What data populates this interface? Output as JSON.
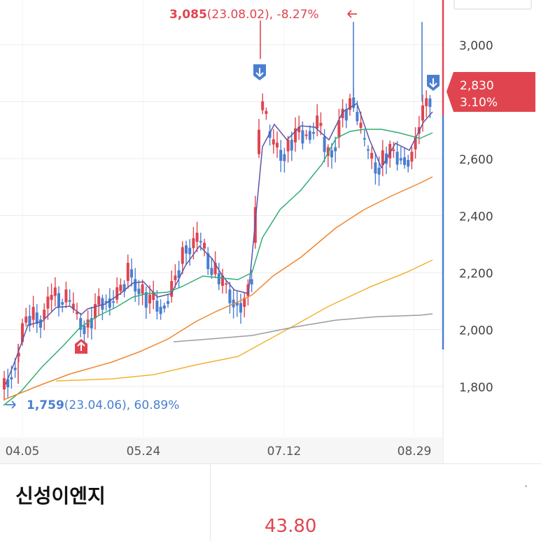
{
  "chart_data": {
    "type": "candlestick",
    "title": "",
    "y_ticks": [
      1800,
      2000,
      2200,
      2400,
      2600,
      2800,
      3000
    ],
    "y_tick_labels": [
      "1,800",
      "2,000",
      "2,200",
      "2,400",
      "2,600",
      "",
      "3,000"
    ],
    "ylim": [
      1660,
      3160
    ],
    "x_tick_labels": [
      "04.05",
      "05.24",
      "07.12",
      "08.29"
    ],
    "current_price": "2,830",
    "current_change": "3.10%",
    "high_price": "3,085",
    "high_detail": "(23.08.02), -8.27%",
    "low_price": "1,759",
    "low_detail": "(23.04.06), 60.89%",
    "colors": {
      "up": "#e0454f",
      "down": "#4a7fd0"
    },
    "moving_averages": [
      {
        "color": "#5a55a8",
        "points": [
          [
            8,
            550
          ],
          [
            22,
            515
          ],
          [
            40,
            465
          ],
          [
            60,
            460
          ],
          [
            80,
            440
          ],
          [
            100,
            438
          ],
          [
            116,
            450
          ],
          [
            125,
            442
          ],
          [
            150,
            435
          ],
          [
            172,
            420
          ],
          [
            190,
            405
          ],
          [
            205,
            403
          ],
          [
            225,
            425
          ],
          [
            245,
            420
          ],
          [
            265,
            380
          ],
          [
            285,
            352
          ],
          [
            303,
            370
          ],
          [
            318,
            395
          ],
          [
            335,
            415
          ],
          [
            355,
            420
          ],
          [
            375,
            210
          ],
          [
            392,
            178
          ],
          [
            410,
            200
          ],
          [
            430,
            180
          ],
          [
            450,
            182
          ],
          [
            470,
            200
          ],
          [
            490,
            160
          ],
          [
            510,
            148
          ],
          [
            528,
            200
          ],
          [
            545,
            240
          ],
          [
            565,
            205
          ],
          [
            585,
            215
          ],
          [
            605,
            175
          ],
          [
            618,
            160
          ]
        ]
      },
      {
        "color": "#2fae72",
        "points": [
          [
            5,
            580
          ],
          [
            30,
            560
          ],
          [
            60,
            525
          ],
          [
            90,
            495
          ],
          [
            115,
            468
          ],
          [
            140,
            452
          ],
          [
            165,
            440
          ],
          [
            190,
            425
          ],
          [
            210,
            420
          ],
          [
            240,
            418
          ],
          [
            260,
            410
          ],
          [
            290,
            395
          ],
          [
            320,
            398
          ],
          [
            340,
            400
          ],
          [
            360,
            390
          ],
          [
            375,
            340
          ],
          [
            400,
            300
          ],
          [
            430,
            272
          ],
          [
            460,
            235
          ],
          [
            480,
            198
          ],
          [
            500,
            188
          ],
          [
            520,
            185
          ],
          [
            545,
            185
          ],
          [
            570,
            190
          ],
          [
            600,
            198
          ],
          [
            618,
            190
          ]
        ]
      },
      {
        "color": "#f0862e",
        "points": [
          [
            5,
            572
          ],
          [
            60,
            550
          ],
          [
            100,
            535
          ],
          [
            160,
            518
          ],
          [
            200,
            503
          ],
          [
            240,
            485
          ],
          [
            280,
            460
          ],
          [
            310,
            445
          ],
          [
            340,
            432
          ],
          [
            360,
            422
          ],
          [
            390,
            395
          ],
          [
            430,
            368
          ],
          [
            480,
            326
          ],
          [
            520,
            300
          ],
          [
            560,
            280
          ],
          [
            600,
            262
          ],
          [
            618,
            253
          ]
        ]
      },
      {
        "color": "#f3b233",
        "points": [
          [
            80,
            545
          ],
          [
            160,
            542
          ],
          [
            220,
            536
          ],
          [
            280,
            522
          ],
          [
            340,
            510
          ],
          [
            380,
            488
          ],
          [
            420,
            466
          ],
          [
            470,
            438
          ],
          [
            530,
            410
          ],
          [
            580,
            390
          ],
          [
            618,
            372
          ]
        ]
      },
      {
        "color": "#9c9c9c",
        "points": [
          [
            248,
            489
          ],
          [
            300,
            485
          ],
          [
            360,
            480
          ],
          [
            420,
            468
          ],
          [
            480,
            458
          ],
          [
            540,
            453
          ],
          [
            600,
            451
          ],
          [
            618,
            449
          ]
        ]
      }
    ]
  },
  "bottom": {
    "name": "신성이엔지",
    "value": "43.80"
  }
}
